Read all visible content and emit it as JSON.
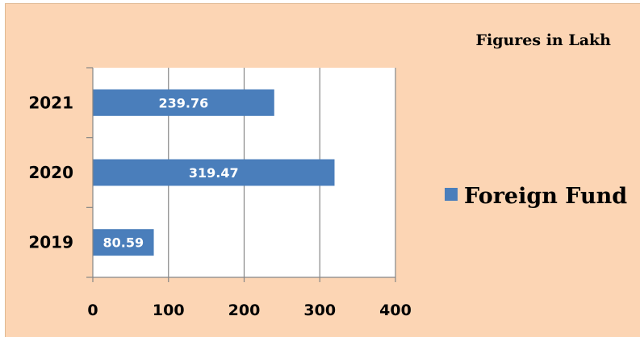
{
  "chart_data": {
    "type": "bar",
    "orientation": "horizontal",
    "categories": [
      "2021",
      "2020",
      "2019"
    ],
    "series": [
      {
        "name": "Foreign Fund",
        "values": [
          239.76,
          319.47,
          80.59
        ],
        "labels": [
          "239.76",
          "319.47",
          "80.59"
        ],
        "color": "#4a7ebb"
      }
    ],
    "units_note": "Figures in Lakh",
    "xlim": [
      0,
      400
    ],
    "xticks": [
      0,
      100,
      200,
      300,
      400
    ],
    "grid": true,
    "legend_position": "right",
    "plot_background": "#ffffff",
    "chart_background": "#fcd5b4",
    "gridline_color": "#868686"
  }
}
